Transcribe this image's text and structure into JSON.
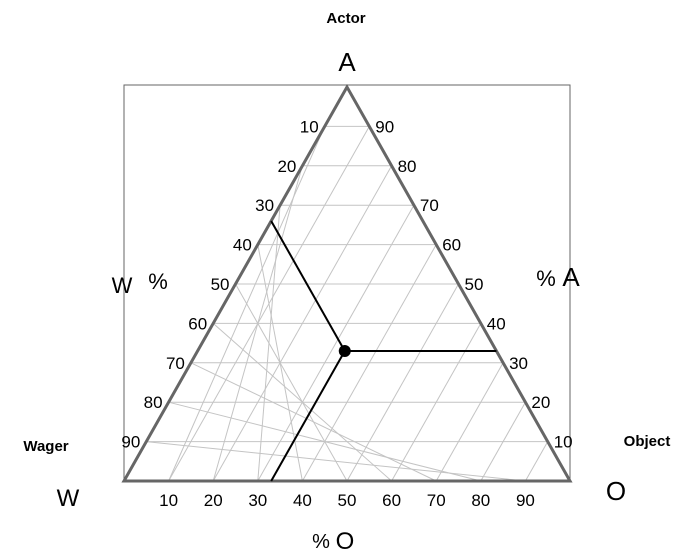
{
  "chart_data": {
    "type": "ternary",
    "vertices": {
      "top": {
        "letter": "A",
        "name": "Actor"
      },
      "left": {
        "letter": "W",
        "name": "Wager"
      },
      "right": {
        "letter": "O",
        "name": "Object"
      }
    },
    "axis_labels": {
      "left": {
        "percent": "%",
        "letter": "W"
      },
      "right": {
        "percent": "%",
        "letter": "A"
      },
      "bottom": {
        "percent": "%",
        "letter": "O"
      }
    },
    "ticks": {
      "left": [
        "10",
        "20",
        "30",
        "40",
        "50",
        "60",
        "70",
        "80",
        "90"
      ],
      "right": [
        "90",
        "80",
        "70",
        "60",
        "50",
        "40",
        "30",
        "20",
        "10"
      ],
      "bottom": [
        "10",
        "20",
        "30",
        "40",
        "50",
        "60",
        "70",
        "80",
        "90"
      ]
    },
    "point": {
      "A": 33,
      "O": 33,
      "W": 34
    },
    "grid": true,
    "grid_step": 10
  }
}
